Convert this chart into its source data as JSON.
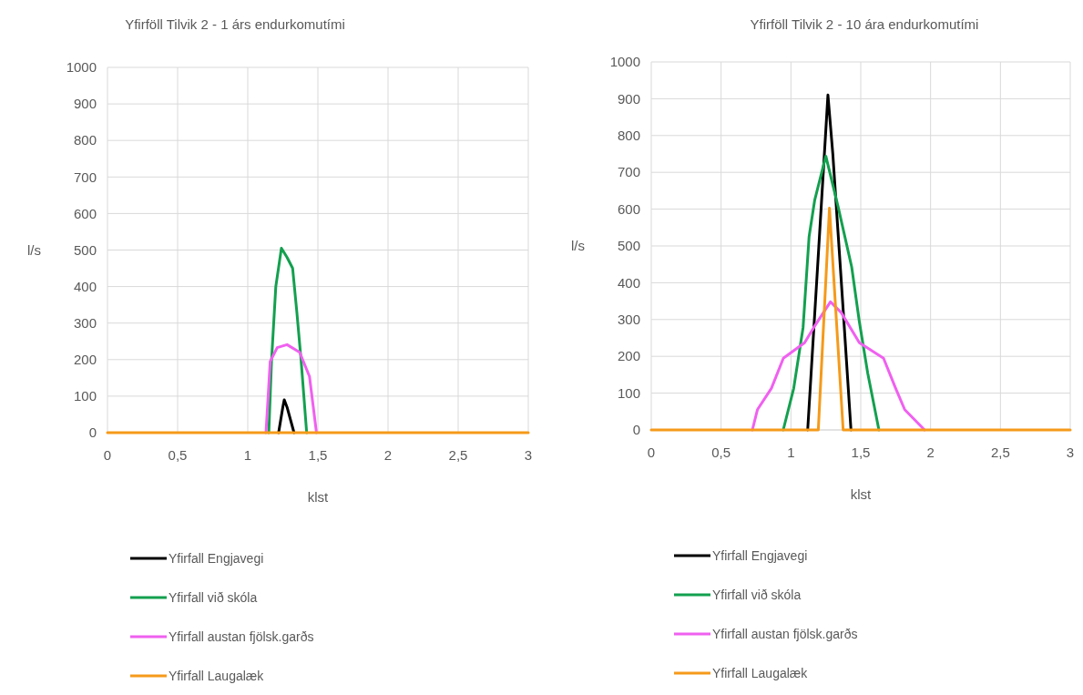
{
  "chart_data": [
    {
      "type": "line",
      "title": "Yfirföll Tilvik 2 - 1 árs endurkomutími",
      "xlabel": "klst",
      "ylabel": "l/s",
      "xlim": [
        0,
        3
      ],
      "xticks": [
        0,
        {
          "value": 0.5,
          "label": "0,5"
        },
        1,
        {
          "value": 1.5,
          "label": "1,5"
        },
        2,
        {
          "value": 2.5,
          "label": "2,5"
        },
        3
      ],
      "ylim": [
        0,
        1000
      ],
      "yticks": [
        0,
        100,
        200,
        300,
        400,
        500,
        600,
        700,
        800,
        900,
        1000
      ],
      "grid": true,
      "legend": "bottom",
      "marker": "none",
      "line_style": "solid",
      "series": [
        {
          "name": "Yfirfall Engjavegi",
          "color": "#000000",
          "x": [
            1.22,
            1.25,
            1.26,
            1.28,
            1.33
          ],
          "values": [
            0,
            70,
            90,
            70,
            0
          ]
        },
        {
          "name": "Yfirfall við skóla",
          "color": "#13a04f",
          "x": [
            1.15,
            1.17,
            1.2,
            1.24,
            1.28,
            1.32,
            1.35,
            1.38,
            1.42
          ],
          "values": [
            0,
            200,
            400,
            505,
            480,
            450,
            330,
            200,
            0
          ]
        },
        {
          "name": "Yfirfall austan fjölsk.garðs",
          "color": "#f060f0",
          "x": [
            1.13,
            1.16,
            1.21,
            1.28,
            1.37,
            1.44,
            1.49
          ],
          "values": [
            0,
            195,
            233,
            241,
            220,
            154,
            0
          ]
        },
        {
          "name": "Yfirfall Laugalæk",
          "color": "#f59a1a",
          "x": [
            0,
            3
          ],
          "values": [
            0,
            0
          ]
        }
      ]
    },
    {
      "type": "line",
      "title": "Yfirföll Tilvik 2 - 10 ára endurkomutími",
      "xlabel": "klst",
      "ylabel": "l/s",
      "xlim": [
        0,
        3
      ],
      "xticks": [
        0,
        {
          "value": 0.5,
          "label": "0,5"
        },
        1,
        {
          "value": 1.5,
          "label": "1,5"
        },
        2,
        {
          "value": 2.5,
          "label": "2,5"
        },
        3
      ],
      "ylim": [
        0,
        1000
      ],
      "yticks": [
        0,
        100,
        200,
        300,
        400,
        500,
        600,
        700,
        800,
        900,
        1000
      ],
      "grid": true,
      "legend": "bottom",
      "marker": "none",
      "line_style": "solid",
      "series": [
        {
          "name": "Yfirfall Engjavegi",
          "color": "#000000",
          "x": [
            1.12,
            1.2,
            1.265,
            1.3,
            1.37,
            1.43
          ],
          "values": [
            0,
            500,
            910,
            750,
            350,
            0
          ]
        },
        {
          "name": "Yfirfall við skóla",
          "color": "#13a04f",
          "x": [
            0.945,
            1.02,
            1.087,
            1.13,
            1.17,
            1.25,
            1.337,
            1.435,
            1.49,
            1.55,
            1.63
          ],
          "values": [
            0,
            113,
            278,
            525,
            624,
            744,
            608,
            443,
            294,
            154,
            0
          ]
        },
        {
          "name": "Yfirfall austan fjölsk.garðs",
          "color": "#f060f0",
          "x": [
            0.724,
            0.76,
            0.86,
            0.946,
            1.098,
            1.163,
            1.283,
            1.36,
            1.49,
            1.663,
            1.75,
            1.815,
            1.957
          ],
          "values": [
            0,
            55,
            113,
            195,
            237,
            278,
            348,
            319,
            237,
            195,
            113,
            55,
            0
          ]
        },
        {
          "name": "Yfirfall Laugalæk",
          "color": "#f59a1a",
          "x": [
            0,
            1.196,
            1.276,
            1.374,
            3
          ],
          "values": [
            0,
            0,
            603,
            0,
            0
          ]
        }
      ]
    }
  ]
}
